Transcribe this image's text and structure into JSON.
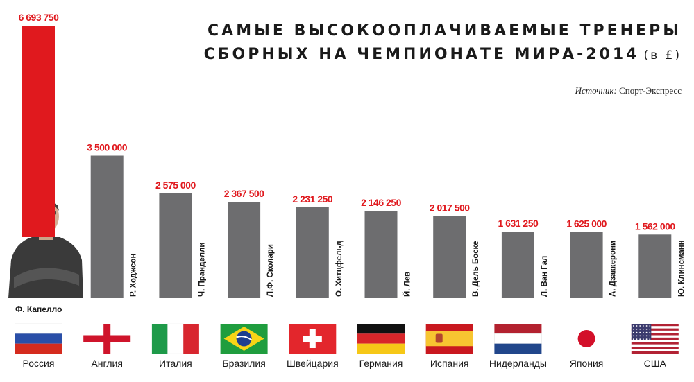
{
  "title": {
    "line1": "САМЫЕ ВЫСОКООПЛАЧИВАЕМЫЕ ТРЕНЕРЫ",
    "line2": "СБОРНЫХ НА ЧЕМПИОНАТЕ МИРА-2014",
    "unit": "(в £)"
  },
  "source": {
    "label": "Источник:",
    "value": "Спорт-Экспресс"
  },
  "colors": {
    "highlight": "#e0191e",
    "bar": "#6d6d6f",
    "value_text": "#e0191e"
  },
  "chart_data": {
    "type": "bar",
    "title": "САМЫЕ ВЫСОКООПЛАЧИВАЕМЫЕ ТРЕНЕРЫ СБОРНЫХ НА ЧЕМПИОНАТЕ МИРА-2014 (в £)",
    "categories": [
      "Россия",
      "Англия",
      "Италия",
      "Бразилия",
      "Швейцария",
      "Германия",
      "Испания",
      "Нидерланды",
      "Япония",
      "США"
    ],
    "coaches": [
      "Ф. Капелло",
      "Р. Ходжсон",
      "Ч. Пранделли",
      "Л.Ф. Сколари",
      "О. Хитцфельд",
      "Й. Лев",
      "В. Дель Боске",
      "Л. Ван Гал",
      "А. Дзаккерони",
      "Ю. Клинсманн"
    ],
    "values": [
      6693750,
      3500000,
      2575000,
      2367500,
      2231250,
      2146250,
      2017500,
      1631250,
      1625000,
      1562000
    ],
    "value_labels": [
      "6 693 750",
      "3 500 000",
      "2 575 000",
      "2 367 500",
      "2 231 250",
      "2 146 250",
      "2 017 500",
      "1 631 250",
      "1 625 000",
      "1 562 000"
    ],
    "flags": [
      "russia",
      "england",
      "italy",
      "brazil",
      "switzerland",
      "germany",
      "spain",
      "netherlands",
      "japan",
      "usa"
    ],
    "highlight_index": 0,
    "xlabel": "",
    "ylabel": "",
    "ylim": [
      0,
      6693750
    ],
    "grid": false,
    "legend": "none"
  }
}
